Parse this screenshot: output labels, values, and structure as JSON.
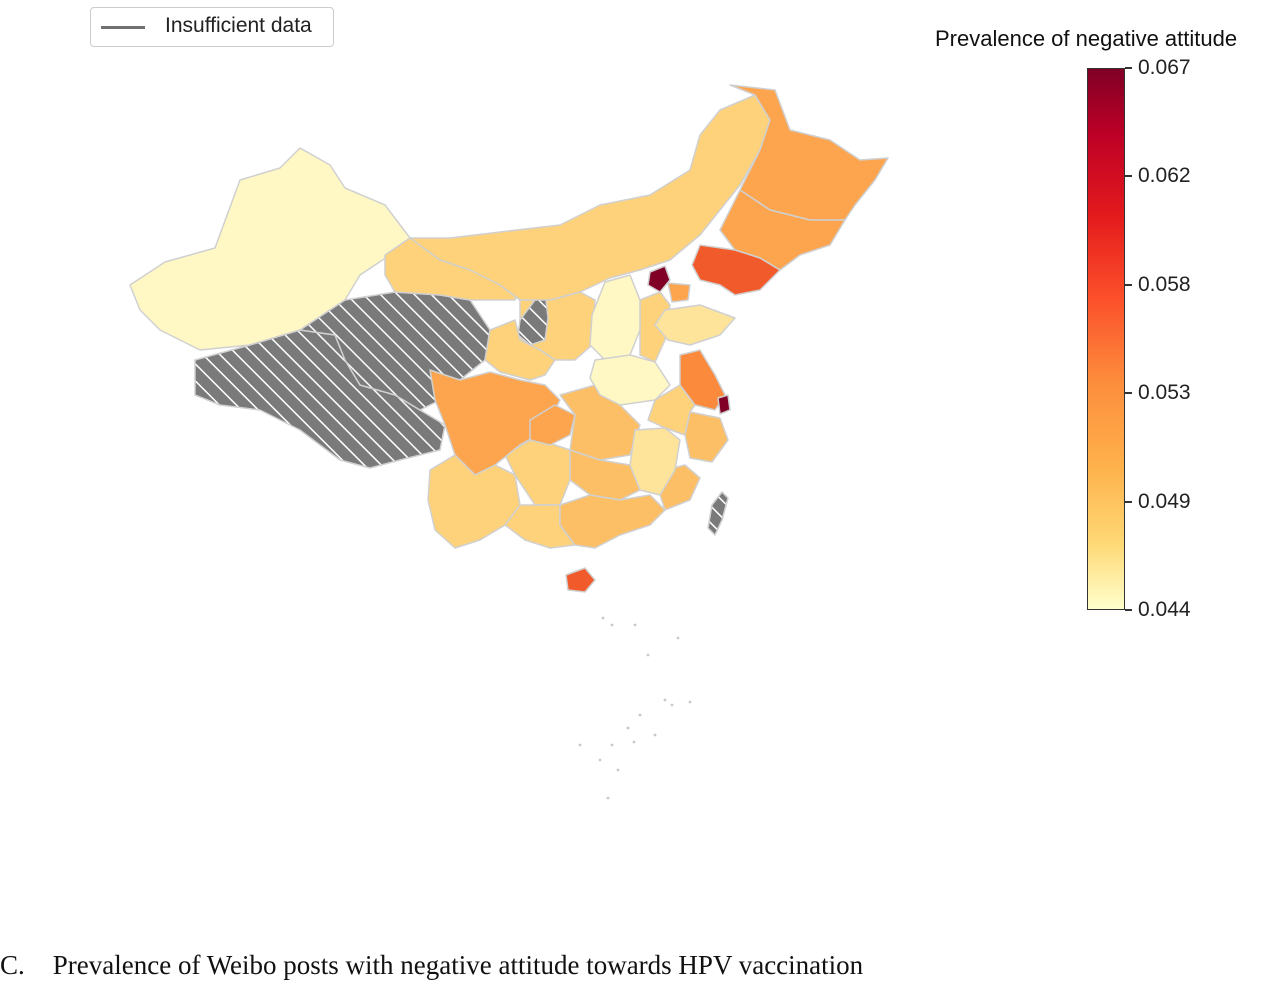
{
  "legend": {
    "label": "Insufficient data",
    "line_color": "#707070"
  },
  "colorbar": {
    "title": "Prevalence of negative attitude",
    "min": 0.044,
    "max": 0.067,
    "ticks": [
      "0.067",
      "0.062",
      "0.058",
      "0.053",
      "0.049",
      "0.044"
    ],
    "colormap": "YlOrRd"
  },
  "map": {
    "colors": {
      "insufficient": "#7a7a7a",
      "hatch": "#ffffff",
      "border": "#d0d0d0",
      "very_low": "#fff8c4",
      "low": "#fee49a",
      "mid_low": "#fed27a",
      "mid": "#fdbf66",
      "mid_high": "#fca54e",
      "high": "#fb8a3c",
      "very_high": "#f15a2b",
      "max": "#800026"
    },
    "regions": [
      {
        "name": "Xinjiang",
        "level": "very_low"
      },
      {
        "name": "Tibet",
        "level": "insufficient"
      },
      {
        "name": "Qinghai",
        "level": "insufficient"
      },
      {
        "name": "Ningxia",
        "level": "insufficient"
      },
      {
        "name": "Taiwan",
        "level": "insufficient"
      },
      {
        "name": "Gansu",
        "level": "mid_low"
      },
      {
        "name": "Inner Mongolia",
        "level": "mid_low"
      },
      {
        "name": "Heilongjiang",
        "level": "mid_high"
      },
      {
        "name": "Jilin",
        "level": "mid_high"
      },
      {
        "name": "Liaoning",
        "level": "very_high"
      },
      {
        "name": "Beijing",
        "level": "max"
      },
      {
        "name": "Shanxi",
        "level": "very_low"
      },
      {
        "name": "Henan",
        "level": "very_low"
      },
      {
        "name": "Shandong",
        "level": "low"
      },
      {
        "name": "Jiangsu",
        "level": "high"
      },
      {
        "name": "Shanghai",
        "level": "max"
      },
      {
        "name": "Sichuan",
        "level": "mid_high"
      },
      {
        "name": "Chongqing",
        "level": "mid_high"
      },
      {
        "name": "Yunnan",
        "level": "mid_low"
      },
      {
        "name": "Guangdong",
        "level": "mid"
      },
      {
        "name": "Hainan",
        "level": "very_high"
      },
      {
        "name": "Jiangxi",
        "level": "low"
      },
      {
        "name": "Zhejiang",
        "level": "mid"
      }
    ]
  },
  "caption": {
    "label": "C.",
    "text": "Prevalence of Weibo posts with negative attitude towards HPV vaccination"
  }
}
